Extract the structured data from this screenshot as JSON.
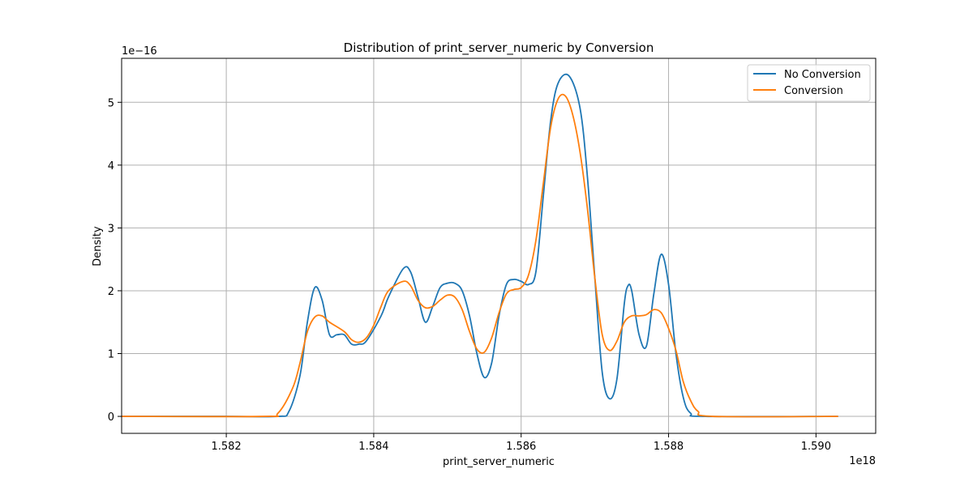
{
  "chart_data": {
    "type": "line",
    "title": "Distribution of print_server_numeric by Conversion",
    "xlabel": "print_server_numeric",
    "ylabel": "Density",
    "x_scale_label": "1e18",
    "y_scale_label": "1e−16",
    "xlim": [
      1.58058,
      1.59081
    ],
    "ylim": [
      -0.27,
      5.7
    ],
    "x_ticks": [
      1.582,
      1.584,
      1.586,
      1.588,
      1.59
    ],
    "x_tick_labels": [
      "1.582",
      "1.584",
      "1.586",
      "1.588",
      "1.590"
    ],
    "y_ticks": [
      0,
      1,
      2,
      3,
      4,
      5
    ],
    "y_tick_labels": [
      "0",
      "1",
      "2",
      "3",
      "4",
      "5"
    ],
    "grid": true,
    "legend_position": "top-right",
    "series": [
      {
        "name": "No Conversion",
        "color": "#1f77b4",
        "points": [
          [
            1.58058,
            0.0
          ],
          [
            1.582,
            0.0
          ],
          [
            1.5827,
            0.0
          ],
          [
            1.58285,
            0.08
          ],
          [
            1.583,
            0.65
          ],
          [
            1.5831,
            1.5
          ],
          [
            1.5832,
            2.05
          ],
          [
            1.5833,
            1.85
          ],
          [
            1.5834,
            1.3
          ],
          [
            1.5835,
            1.3
          ],
          [
            1.5836,
            1.3
          ],
          [
            1.5837,
            1.15
          ],
          [
            1.5838,
            1.15
          ],
          [
            1.5839,
            1.2
          ],
          [
            1.5841,
            1.6
          ],
          [
            1.5842,
            1.9
          ],
          [
            1.5844,
            2.35
          ],
          [
            1.5845,
            2.3
          ],
          [
            1.5846,
            1.9
          ],
          [
            1.5847,
            1.5
          ],
          [
            1.5848,
            1.75
          ],
          [
            1.5849,
            2.05
          ],
          [
            1.585,
            2.12
          ],
          [
            1.5851,
            2.12
          ],
          [
            1.5852,
            2.0
          ],
          [
            1.5853,
            1.6
          ],
          [
            1.5854,
            1.0
          ],
          [
            1.5855,
            0.62
          ],
          [
            1.5856,
            0.85
          ],
          [
            1.5857,
            1.6
          ],
          [
            1.5858,
            2.1
          ],
          [
            1.5859,
            2.18
          ],
          [
            1.586,
            2.15
          ],
          [
            1.5861,
            2.1
          ],
          [
            1.5862,
            2.3
          ],
          [
            1.5863,
            3.5
          ],
          [
            1.5864,
            4.7
          ],
          [
            1.5865,
            5.3
          ],
          [
            1.58665,
            5.42
          ],
          [
            1.5868,
            4.9
          ],
          [
            1.5869,
            3.8
          ],
          [
            1.587,
            2.2
          ],
          [
            1.5871,
            0.7
          ],
          [
            1.5872,
            0.28
          ],
          [
            1.5873,
            0.6
          ],
          [
            1.5874,
            1.8
          ],
          [
            1.58745,
            2.08
          ],
          [
            1.5875,
            2.0
          ],
          [
            1.5876,
            1.3
          ],
          [
            1.5877,
            1.12
          ],
          [
            1.5878,
            1.95
          ],
          [
            1.5879,
            2.58
          ],
          [
            1.588,
            2.1
          ],
          [
            1.5881,
            1.0
          ],
          [
            1.5882,
            0.3
          ],
          [
            1.5883,
            0.05
          ],
          [
            1.5885,
            0.0
          ],
          [
            1.5903,
            0.0
          ]
        ]
      },
      {
        "name": "Conversion",
        "color": "#ff7f0e",
        "points": [
          [
            1.58058,
            0.0
          ],
          [
            1.5825,
            0.0
          ],
          [
            1.5827,
            0.05
          ],
          [
            1.5829,
            0.45
          ],
          [
            1.583,
            0.85
          ],
          [
            1.5831,
            1.35
          ],
          [
            1.5832,
            1.58
          ],
          [
            1.5833,
            1.6
          ],
          [
            1.5834,
            1.5
          ],
          [
            1.5836,
            1.35
          ],
          [
            1.5837,
            1.22
          ],
          [
            1.5838,
            1.18
          ],
          [
            1.5839,
            1.25
          ],
          [
            1.584,
            1.45
          ],
          [
            1.5841,
            1.75
          ],
          [
            1.5842,
            2.0
          ],
          [
            1.5844,
            2.15
          ],
          [
            1.5845,
            2.08
          ],
          [
            1.5846,
            1.85
          ],
          [
            1.5847,
            1.73
          ],
          [
            1.5848,
            1.75
          ],
          [
            1.5849,
            1.85
          ],
          [
            1.585,
            1.93
          ],
          [
            1.5851,
            1.9
          ],
          [
            1.5852,
            1.7
          ],
          [
            1.5853,
            1.35
          ],
          [
            1.5854,
            1.07
          ],
          [
            1.5855,
            1.02
          ],
          [
            1.5856,
            1.25
          ],
          [
            1.5857,
            1.65
          ],
          [
            1.5858,
            1.95
          ],
          [
            1.5859,
            2.02
          ],
          [
            1.586,
            2.05
          ],
          [
            1.5861,
            2.25
          ],
          [
            1.5862,
            2.8
          ],
          [
            1.5863,
            3.7
          ],
          [
            1.5864,
            4.6
          ],
          [
            1.5865,
            5.05
          ],
          [
            1.5866,
            5.1
          ],
          [
            1.5867,
            4.8
          ],
          [
            1.5868,
            4.2
          ],
          [
            1.5869,
            3.3
          ],
          [
            1.587,
            2.2
          ],
          [
            1.5871,
            1.3
          ],
          [
            1.5872,
            1.05
          ],
          [
            1.5873,
            1.2
          ],
          [
            1.5874,
            1.5
          ],
          [
            1.5875,
            1.6
          ],
          [
            1.5876,
            1.6
          ],
          [
            1.5877,
            1.62
          ],
          [
            1.5878,
            1.7
          ],
          [
            1.5879,
            1.65
          ],
          [
            1.588,
            1.4
          ],
          [
            1.5881,
            1.05
          ],
          [
            1.5882,
            0.55
          ],
          [
            1.5883,
            0.25
          ],
          [
            1.5884,
            0.08
          ],
          [
            1.5886,
            0.0
          ],
          [
            1.5903,
            0.0
          ]
        ]
      }
    ]
  }
}
